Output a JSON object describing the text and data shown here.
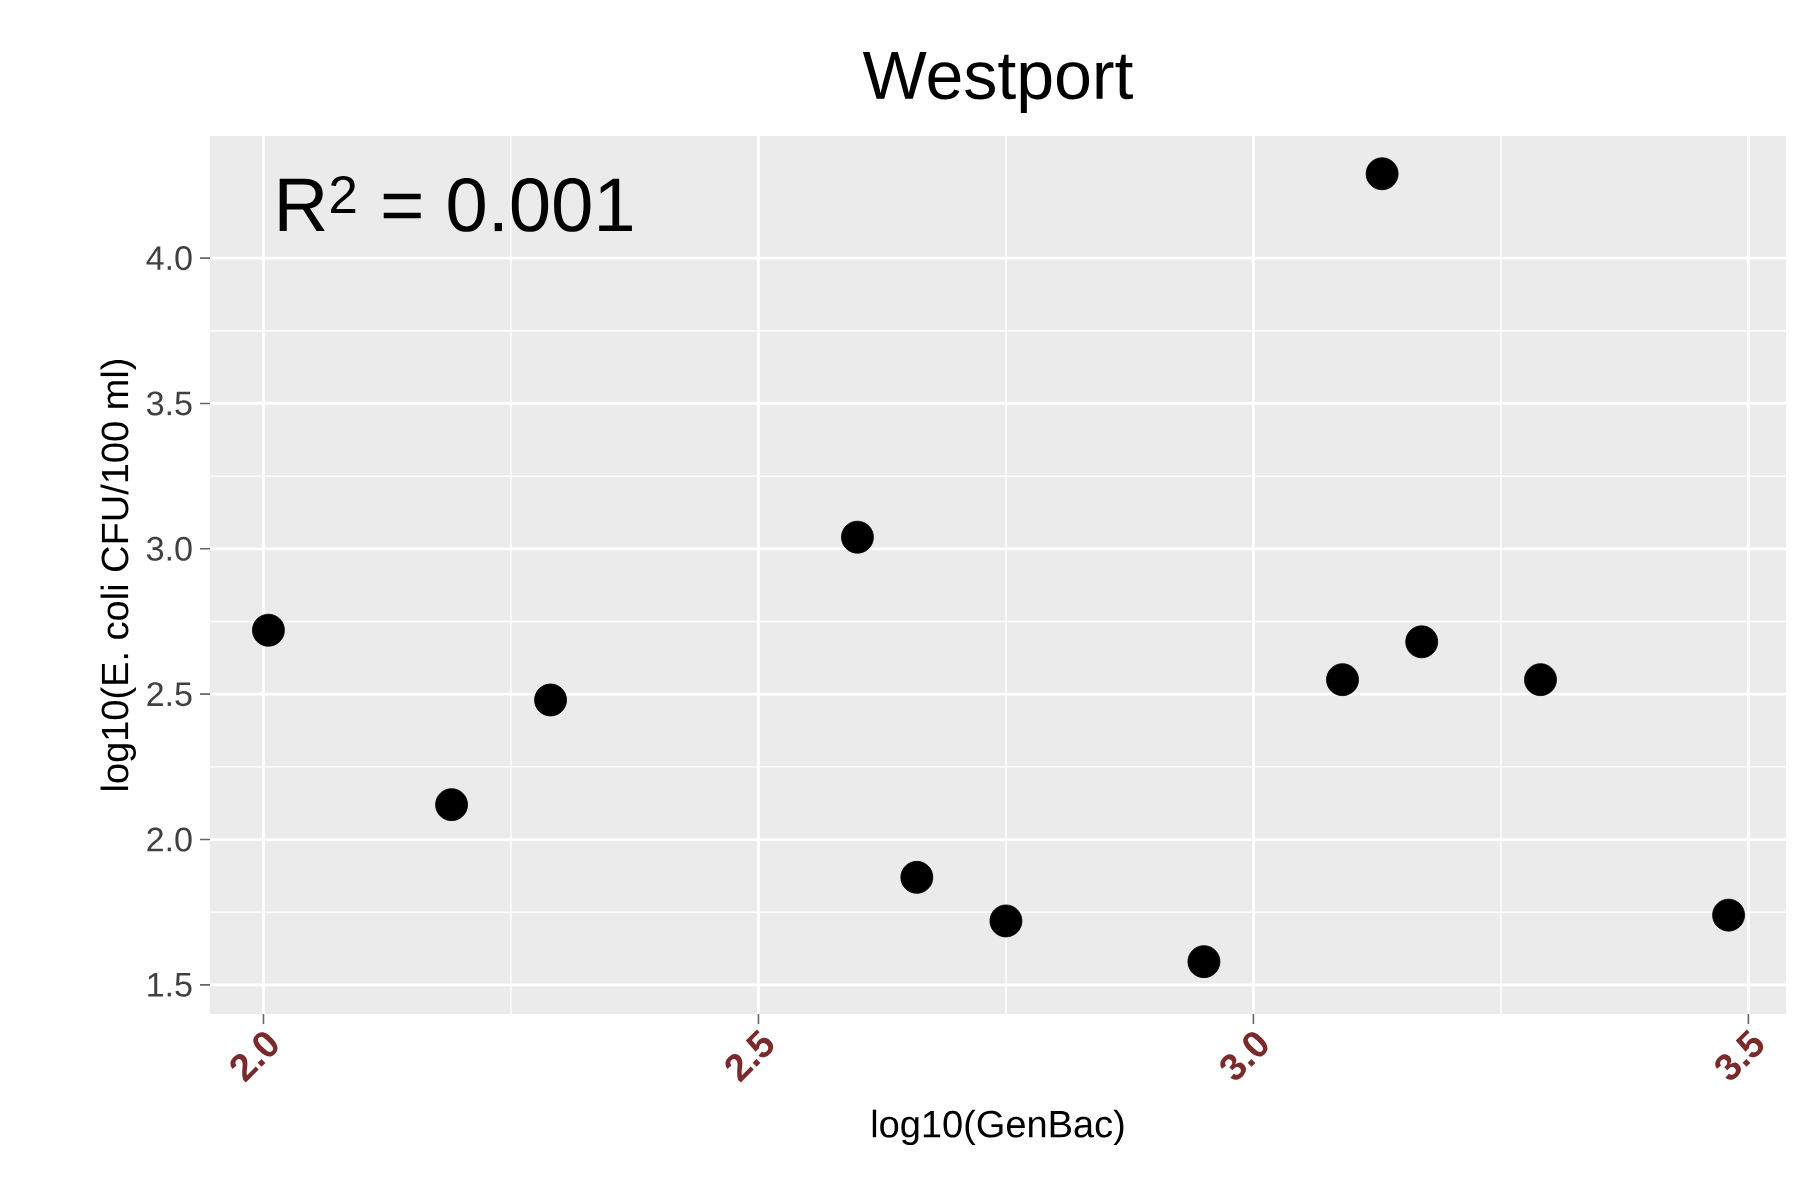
{
  "chart_data": {
    "type": "scatter",
    "title": "Westport",
    "xlabel": "log10(GenBac)",
    "ylabel": "log10(E. coli CFU/100 ml)",
    "annotations": [
      "R$^{2}$ = 0.001"
    ],
    "x": [
      2.005,
      2.19,
      2.29,
      2.6,
      2.66,
      2.75,
      2.95,
      3.09,
      3.13,
      3.17,
      3.29,
      3.48
    ],
    "values": [
      2.72,
      2.12,
      2.48,
      3.04,
      1.87,
      1.72,
      1.58,
      2.55,
      4.29,
      2.68,
      2.55,
      1.74
    ],
    "color": "#000000",
    "marker": "circle",
    "xlim": [
      1.946,
      3.538
    ],
    "ylim": [
      1.4,
      4.42
    ],
    "xticks": [
      {
        "value": 2,
        "label": "2.0"
      },
      2.5,
      {
        "value": 3,
        "label": "3.0"
      },
      3.5
    ],
    "yticks": [
      1.5,
      {
        "value": 2,
        "label": "2.0"
      },
      2.5,
      {
        "value": 3,
        "label": "3.0"
      },
      3.5,
      {
        "value": 4,
        "label": "4.0"
      }
    ],
    "grid": true
  }
}
